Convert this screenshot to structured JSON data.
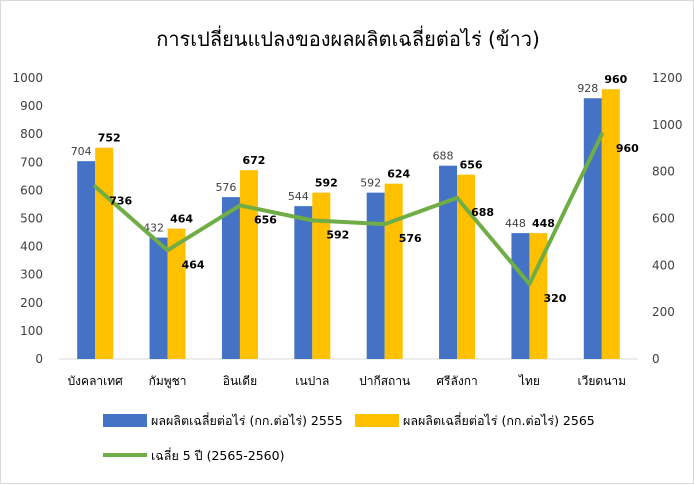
{
  "chart_data": {
    "type": "bar",
    "title": "การเปลี่ยนแปลงของผลผลิตเฉลี่ยต่อไร่ (ข้าว)",
    "categories": [
      "บังคลาเทศ",
      "กัมพูชา",
      "อินเดีย",
      "เนปาล",
      "ปากีสถาน",
      "ศรีลังกา",
      "ไทย",
      "เวียดนาม"
    ],
    "series": [
      {
        "name": "ผลผลิตเฉลี่ยต่อไร่ (กก.ต่อไร่) 2555",
        "type": "bar",
        "axis": "left",
        "color": "#4472C4",
        "values": [
          704,
          432,
          576,
          544,
          592,
          688,
          448,
          928
        ]
      },
      {
        "name": "ผลผลิตเฉลี่ยต่อไร่ (กก.ต่อไร่) 2565",
        "type": "bar",
        "axis": "left",
        "color": "#FFC000",
        "values": [
          752,
          464,
          672,
          592,
          624,
          656,
          448,
          960
        ]
      },
      {
        "name": "เฉลี่ย 5 ปี (2565-2560)",
        "type": "line",
        "axis": "right",
        "color": "#70AD47",
        "values": [
          736,
          464,
          656,
          592,
          576,
          688,
          320,
          960
        ]
      }
    ],
    "y_left": {
      "min": 0,
      "max": 1000,
      "step": 100
    },
    "y_right": {
      "min": 0,
      "max": 1200,
      "step": 200
    },
    "grid": false,
    "legend_position": "bottom"
  }
}
